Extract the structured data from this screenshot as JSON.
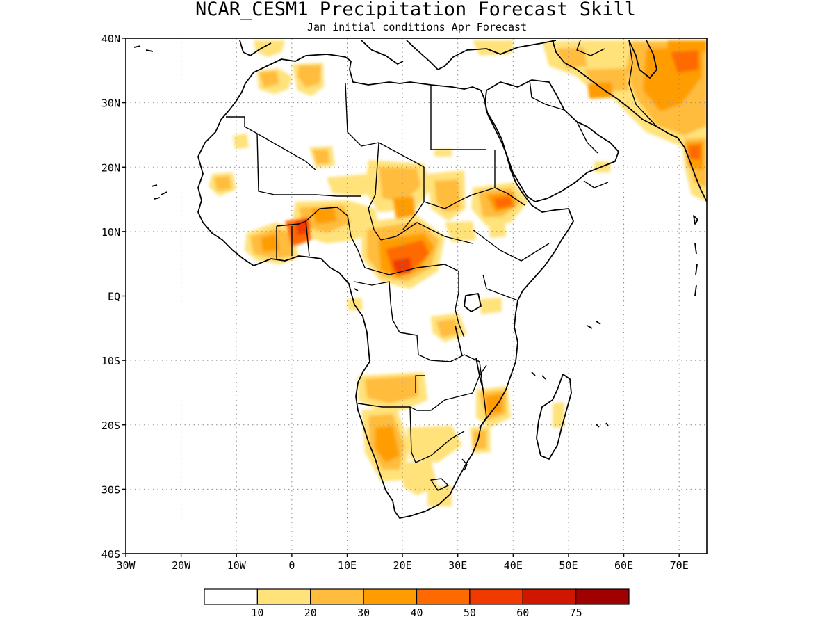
{
  "title": "NCAR_CESM1 Precipitation Forecast Skill",
  "subtitle": "Jan initial conditions  Apr Forecast",
  "lon_ticks": [
    "30W",
    "20W",
    "10W",
    "0",
    "10E",
    "20E",
    "30E",
    "40E",
    "50E",
    "60E",
    "70E"
  ],
  "lat_ticks": [
    "40N",
    "30N",
    "20N",
    "10N",
    "EQ",
    "10S",
    "20S",
    "30S",
    "40S"
  ],
  "colorbar": {
    "colors": [
      "#ffffff",
      "#ffe27a",
      "#ffbc3d",
      "#ff9d00",
      "#ff6a00",
      "#f03a00",
      "#d11600",
      "#a10000"
    ],
    "labels": [
      "10",
      "20",
      "30",
      "40",
      "50",
      "60",
      "75"
    ]
  },
  "colors": {
    "coast": "#000000",
    "grid": "#8c8c8c"
  }
}
